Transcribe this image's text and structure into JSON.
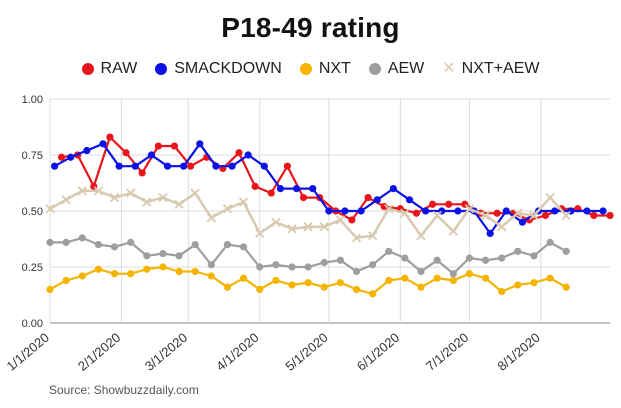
{
  "chart_data": {
    "type": "line",
    "title": "P18-49 rating",
    "source": "Source: Showbuzzdaily.com",
    "xlabel": "",
    "ylabel": "",
    "ylim": [
      0,
      1
    ],
    "yticks": [
      {
        "value": 0,
        "label": "0.00"
      },
      {
        "value": 0.25,
        "label": "0.25"
      },
      {
        "value": 0.5,
        "label": "0.50"
      },
      {
        "value": 0.75,
        "label": "0.75"
      },
      {
        "value": 1,
        "label": "1.00"
      }
    ],
    "xrange": [
      "2020-01-01",
      "2020-08-31"
    ],
    "xticks": [
      {
        "date": "2020-01-01",
        "label": "1/1/2020"
      },
      {
        "date": "2020-02-01",
        "label": "2/1/2020"
      },
      {
        "date": "2020-03-01",
        "label": "3/1/2020"
      },
      {
        "date": "2020-04-01",
        "label": "4/1/2020"
      },
      {
        "date": "2020-05-01",
        "label": "5/1/2020"
      },
      {
        "date": "2020-06-01",
        "label": "6/1/2020"
      },
      {
        "date": "2020-07-01",
        "label": "7/1/2020"
      },
      {
        "date": "2020-08-01",
        "label": "8/1/2020"
      }
    ],
    "grid": true,
    "legend_position": "top",
    "series": [
      {
        "name": "RAW",
        "color": "#e8151b",
        "marker": "dot",
        "points": [
          [
            "2020-01-06",
            0.74
          ],
          [
            "2020-01-13",
            0.75
          ],
          [
            "2020-01-20",
            0.61
          ],
          [
            "2020-01-27",
            0.83
          ],
          [
            "2020-02-03",
            0.76
          ],
          [
            "2020-02-10",
            0.67
          ],
          [
            "2020-02-17",
            0.79
          ],
          [
            "2020-02-24",
            0.79
          ],
          [
            "2020-03-02",
            0.7
          ],
          [
            "2020-03-09",
            0.74
          ],
          [
            "2020-03-16",
            0.69
          ],
          [
            "2020-03-23",
            0.76
          ],
          [
            "2020-03-30",
            0.61
          ],
          [
            "2020-04-06",
            0.58
          ],
          [
            "2020-04-13",
            0.7
          ],
          [
            "2020-04-20",
            0.56
          ],
          [
            "2020-04-27",
            0.56
          ],
          [
            "2020-05-04",
            0.5
          ],
          [
            "2020-05-11",
            0.46
          ],
          [
            "2020-05-18",
            0.56
          ],
          [
            "2020-05-25",
            0.52
          ],
          [
            "2020-06-01",
            0.51
          ],
          [
            "2020-06-08",
            0.49
          ],
          [
            "2020-06-15",
            0.53
          ],
          [
            "2020-06-22",
            0.53
          ],
          [
            "2020-06-29",
            0.53
          ],
          [
            "2020-07-06",
            0.49
          ],
          [
            "2020-07-13",
            0.49
          ],
          [
            "2020-07-20",
            0.49
          ],
          [
            "2020-07-27",
            0.46
          ],
          [
            "2020-08-03",
            0.48
          ],
          [
            "2020-08-10",
            0.51
          ],
          [
            "2020-08-17",
            0.51
          ],
          [
            "2020-08-24",
            0.48
          ],
          [
            "2020-08-31",
            0.48
          ]
        ]
      },
      {
        "name": "SMACKDOWN",
        "color": "#0a12e6",
        "marker": "dot",
        "points": [
          [
            "2020-01-03",
            0.7
          ],
          [
            "2020-01-10",
            0.74
          ],
          [
            "2020-01-17",
            0.77
          ],
          [
            "2020-01-24",
            0.8
          ],
          [
            "2020-01-31",
            0.7
          ],
          [
            "2020-02-07",
            0.7
          ],
          [
            "2020-02-14",
            0.75
          ],
          [
            "2020-02-21",
            0.7
          ],
          [
            "2020-02-28",
            0.7
          ],
          [
            "2020-03-06",
            0.8
          ],
          [
            "2020-03-13",
            0.7
          ],
          [
            "2020-03-20",
            0.7
          ],
          [
            "2020-03-27",
            0.75
          ],
          [
            "2020-04-03",
            0.7
          ],
          [
            "2020-04-10",
            0.6
          ],
          [
            "2020-04-17",
            0.6
          ],
          [
            "2020-04-24",
            0.6
          ],
          [
            "2020-05-01",
            0.5
          ],
          [
            "2020-05-08",
            0.5
          ],
          [
            "2020-05-15",
            0.5
          ],
          [
            "2020-05-22",
            0.55
          ],
          [
            "2020-05-29",
            0.6
          ],
          [
            "2020-06-05",
            0.55
          ],
          [
            "2020-06-12",
            0.5
          ],
          [
            "2020-06-19",
            0.5
          ],
          [
            "2020-06-26",
            0.5
          ],
          [
            "2020-07-03",
            0.5
          ],
          [
            "2020-07-10",
            0.4
          ],
          [
            "2020-07-17",
            0.5
          ],
          [
            "2020-07-24",
            0.45
          ],
          [
            "2020-07-31",
            0.5
          ],
          [
            "2020-08-07",
            0.5
          ],
          [
            "2020-08-14",
            0.5
          ],
          [
            "2020-08-21",
            0.5
          ],
          [
            "2020-08-28",
            0.5
          ]
        ]
      },
      {
        "name": "NXT",
        "color": "#f4b400",
        "marker": "dot",
        "points": [
          [
            "2020-01-01",
            0.15
          ],
          [
            "2020-01-08",
            0.19
          ],
          [
            "2020-01-15",
            0.21
          ],
          [
            "2020-01-22",
            0.24
          ],
          [
            "2020-01-29",
            0.22
          ],
          [
            "2020-02-05",
            0.22
          ],
          [
            "2020-02-12",
            0.24
          ],
          [
            "2020-02-19",
            0.25
          ],
          [
            "2020-02-26",
            0.23
          ],
          [
            "2020-03-04",
            0.23
          ],
          [
            "2020-03-11",
            0.21
          ],
          [
            "2020-03-18",
            0.16
          ],
          [
            "2020-03-25",
            0.2
          ],
          [
            "2020-04-01",
            0.15
          ],
          [
            "2020-04-08",
            0.19
          ],
          [
            "2020-04-15",
            0.17
          ],
          [
            "2020-04-22",
            0.18
          ],
          [
            "2020-04-29",
            0.16
          ],
          [
            "2020-05-06",
            0.18
          ],
          [
            "2020-05-13",
            0.15
          ],
          [
            "2020-05-20",
            0.13
          ],
          [
            "2020-05-27",
            0.19
          ],
          [
            "2020-06-03",
            0.2
          ],
          [
            "2020-06-10",
            0.16
          ],
          [
            "2020-06-17",
            0.2
          ],
          [
            "2020-06-24",
            0.19
          ],
          [
            "2020-07-01",
            0.22
          ],
          [
            "2020-07-08",
            0.2
          ],
          [
            "2020-07-15",
            0.14
          ],
          [
            "2020-07-22",
            0.17
          ],
          [
            "2020-07-29",
            0.18
          ],
          [
            "2020-08-05",
            0.2
          ],
          [
            "2020-08-12",
            0.16
          ]
        ]
      },
      {
        "name": "AEW",
        "color": "#9e9e9e",
        "marker": "dot",
        "points": [
          [
            "2020-01-01",
            0.36
          ],
          [
            "2020-01-08",
            0.36
          ],
          [
            "2020-01-15",
            0.38
          ],
          [
            "2020-01-22",
            0.35
          ],
          [
            "2020-01-29",
            0.34
          ],
          [
            "2020-02-05",
            0.36
          ],
          [
            "2020-02-12",
            0.3
          ],
          [
            "2020-02-19",
            0.31
          ],
          [
            "2020-02-26",
            0.3
          ],
          [
            "2020-03-04",
            0.35
          ],
          [
            "2020-03-11",
            0.26
          ],
          [
            "2020-03-18",
            0.35
          ],
          [
            "2020-03-25",
            0.34
          ],
          [
            "2020-04-01",
            0.25
          ],
          [
            "2020-04-08",
            0.26
          ],
          [
            "2020-04-15",
            0.25
          ],
          [
            "2020-04-22",
            0.25
          ],
          [
            "2020-04-29",
            0.27
          ],
          [
            "2020-05-06",
            0.28
          ],
          [
            "2020-05-13",
            0.23
          ],
          [
            "2020-05-20",
            0.26
          ],
          [
            "2020-05-27",
            0.32
          ],
          [
            "2020-06-03",
            0.29
          ],
          [
            "2020-06-10",
            0.23
          ],
          [
            "2020-06-17",
            0.28
          ],
          [
            "2020-06-24",
            0.22
          ],
          [
            "2020-07-01",
            0.29
          ],
          [
            "2020-07-08",
            0.28
          ],
          [
            "2020-07-15",
            0.29
          ],
          [
            "2020-07-22",
            0.32
          ],
          [
            "2020-07-29",
            0.3
          ],
          [
            "2020-08-05",
            0.36
          ],
          [
            "2020-08-12",
            0.32
          ]
        ]
      },
      {
        "name": "NXT+AEW",
        "color": "#d9c9b0",
        "marker": "cross",
        "points": [
          [
            "2020-01-01",
            0.51
          ],
          [
            "2020-01-08",
            0.55
          ],
          [
            "2020-01-15",
            0.59
          ],
          [
            "2020-01-22",
            0.59
          ],
          [
            "2020-01-29",
            0.56
          ],
          [
            "2020-02-05",
            0.58
          ],
          [
            "2020-02-12",
            0.54
          ],
          [
            "2020-02-19",
            0.56
          ],
          [
            "2020-02-26",
            0.53
          ],
          [
            "2020-03-04",
            0.58
          ],
          [
            "2020-03-11",
            0.47
          ],
          [
            "2020-03-18",
            0.51
          ],
          [
            "2020-03-25",
            0.54
          ],
          [
            "2020-04-01",
            0.4
          ],
          [
            "2020-04-08",
            0.45
          ],
          [
            "2020-04-15",
            0.42
          ],
          [
            "2020-04-22",
            0.43
          ],
          [
            "2020-04-29",
            0.43
          ],
          [
            "2020-05-06",
            0.46
          ],
          [
            "2020-05-13",
            0.38
          ],
          [
            "2020-05-20",
            0.39
          ],
          [
            "2020-05-27",
            0.51
          ],
          [
            "2020-06-03",
            0.49
          ],
          [
            "2020-06-10",
            0.39
          ],
          [
            "2020-06-17",
            0.48
          ],
          [
            "2020-06-24",
            0.41
          ],
          [
            "2020-07-01",
            0.51
          ],
          [
            "2020-07-08",
            0.48
          ],
          [
            "2020-07-15",
            0.43
          ],
          [
            "2020-07-22",
            0.49
          ],
          [
            "2020-07-29",
            0.48
          ],
          [
            "2020-08-05",
            0.56
          ],
          [
            "2020-08-12",
            0.48
          ]
        ]
      }
    ]
  }
}
